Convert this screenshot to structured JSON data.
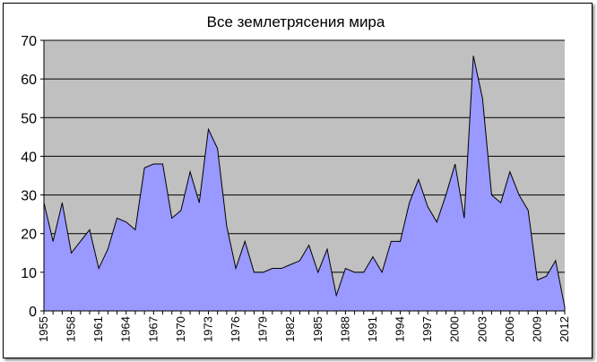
{
  "chart_data": {
    "type": "area",
    "title": "Все землетрясения мира",
    "xlabel": "",
    "ylabel": "",
    "ylim": [
      0,
      70
    ],
    "yticks": [
      0,
      10,
      20,
      30,
      40,
      50,
      60,
      70
    ],
    "grid": true,
    "legend": "none",
    "colors": {
      "plot_background": "#c0c0c0",
      "area_fill": "#9999ff",
      "line": "#000000",
      "gridline": "#000000"
    },
    "xtick_labels": [
      "1955",
      "1958",
      "1961",
      "1964",
      "1967",
      "1970",
      "1973",
      "1976",
      "1979",
      "1982",
      "1985",
      "1988",
      "1991",
      "1994",
      "1997",
      "2000",
      "2003",
      "2006",
      "2009",
      "2012"
    ],
    "x": [
      1955,
      1956,
      1957,
      1958,
      1959,
      1960,
      1961,
      1962,
      1963,
      1964,
      1965,
      1966,
      1967,
      1968,
      1969,
      1970,
      1971,
      1972,
      1973,
      1974,
      1975,
      1976,
      1977,
      1978,
      1979,
      1980,
      1981,
      1982,
      1983,
      1984,
      1985,
      1986,
      1987,
      1988,
      1989,
      1990,
      1991,
      1992,
      1993,
      1994,
      1995,
      1996,
      1997,
      1998,
      1999,
      2000,
      2001,
      2002,
      2003,
      2004,
      2005,
      2006,
      2007,
      2008,
      2009,
      2010,
      2011,
      2012
    ],
    "values": [
      28,
      18,
      28,
      15,
      18,
      21,
      11,
      16,
      24,
      23,
      21,
      37,
      38,
      38,
      24,
      26,
      36,
      28,
      47,
      42,
      22,
      11,
      18,
      10,
      10,
      11,
      11,
      12,
      13,
      17,
      10,
      16,
      4,
      11,
      10,
      10,
      14,
      10,
      18,
      18,
      28,
      34,
      27,
      23,
      30,
      38,
      24,
      66,
      55,
      30,
      28,
      36,
      30,
      26,
      8,
      9,
      13,
      1
    ]
  }
}
